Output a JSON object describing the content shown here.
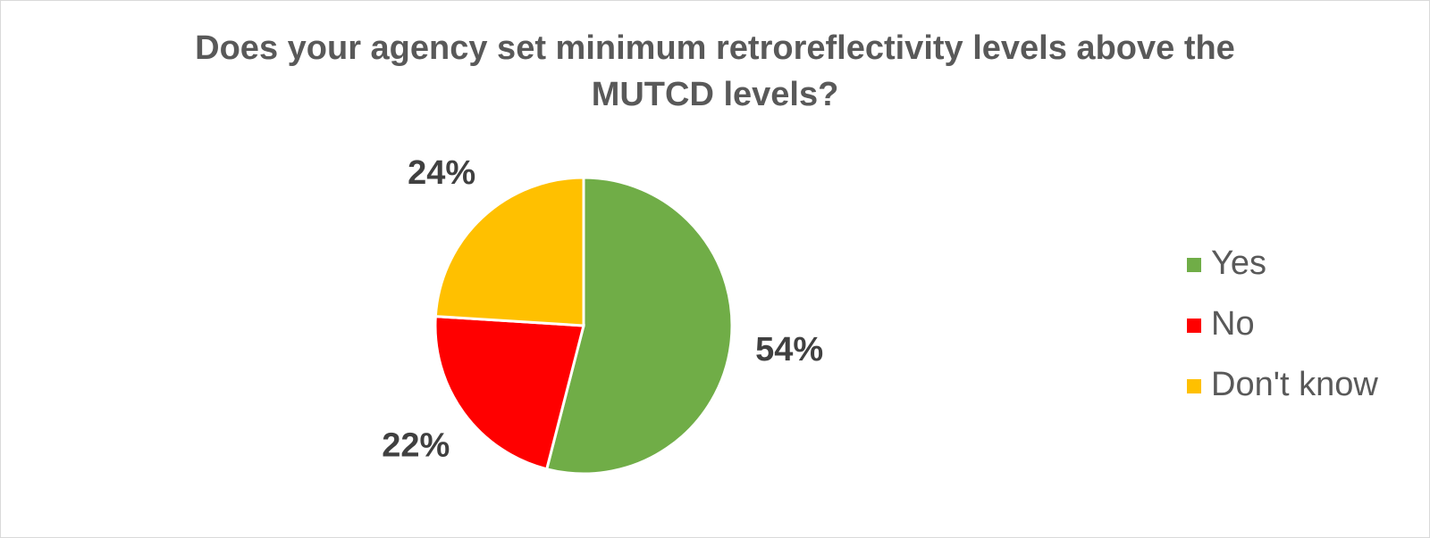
{
  "chart_data": {
    "type": "pie",
    "title": "Does your agency set minimum retroreflectivity levels above the MUTCD levels?",
    "categories": [
      "Yes",
      "No",
      "Don't know"
    ],
    "values": [
      54,
      22,
      24
    ],
    "value_labels": [
      "54%",
      "22%",
      "24%"
    ],
    "colors": [
      "#70ad47",
      "#ff0000",
      "#ffc000"
    ],
    "legend": "right"
  }
}
